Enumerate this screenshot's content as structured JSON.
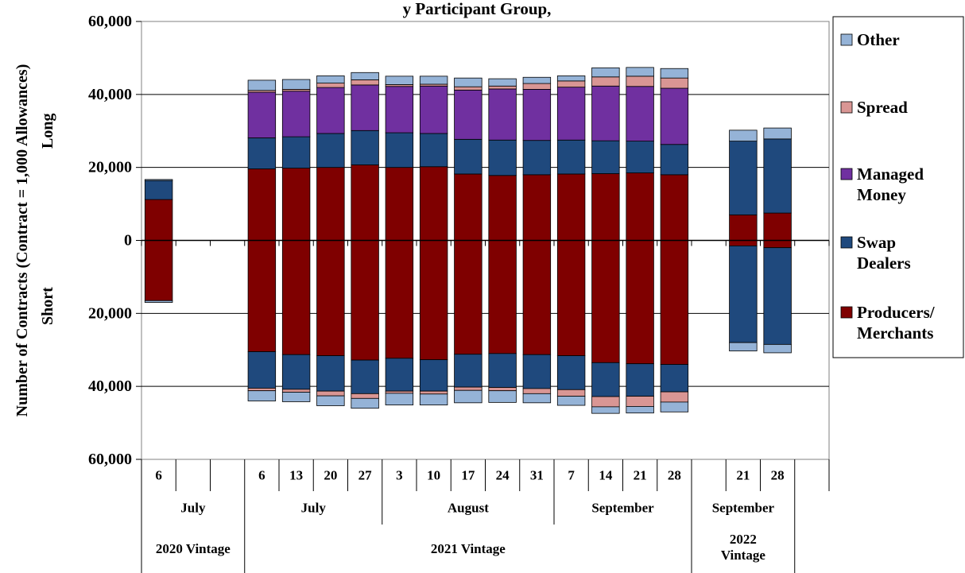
{
  "chart_data": {
    "type": "bar",
    "title": "y Participant Group, ",
    "ylabel": "Number of Contracts (Contract = 1,000 Allowances)",
    "long_label": "Long",
    "short_label": "Short",
    "ylim": [
      -60000,
      60000
    ],
    "yticks": [
      {
        "value": 60000,
        "label": "60,000"
      },
      {
        "value": 40000,
        "label": "40,000"
      },
      {
        "value": 20000,
        "label": "20,000"
      },
      {
        "value": 0,
        "label": "0"
      },
      {
        "value": -20000,
        "label": "20,000"
      },
      {
        "value": -40000,
        "label": "40,000"
      },
      {
        "value": -60000,
        "label": "60,000"
      }
    ],
    "grid": true,
    "legend_position": "right",
    "series_names": [
      "Producers/ Merchants",
      "Swap Dealers",
      "Managed Money",
      "Spread",
      "Other"
    ],
    "series_colors": [
      "#7f0000",
      "#1f497d",
      "#7030a0",
      "#d99694",
      "#95b3d7"
    ],
    "legend": [
      {
        "key": 4,
        "lines": [
          "Other"
        ]
      },
      {
        "key": 3,
        "lines": [
          "Spread"
        ]
      },
      {
        "key": 2,
        "lines": [
          "Managed",
          "Money"
        ]
      },
      {
        "key": 1,
        "lines": [
          "Swap",
          "Dealers"
        ]
      },
      {
        "key": 0,
        "lines": [
          "Producers/",
          "Merchants"
        ]
      }
    ],
    "categories": [
      "6",
      "",
      "",
      "6",
      "13",
      "20",
      "27",
      "3",
      "10",
      "17",
      "24",
      "31",
      "7",
      "14",
      "21",
      "28",
      "",
      "21",
      "28",
      ""
    ],
    "bars": [
      {
        "slot": 0,
        "long": [
          11200,
          5200,
          0,
          0,
          300
        ],
        "short": [
          16500,
          0,
          0,
          0,
          500
        ]
      },
      {
        "slot": 3,
        "long": [
          19600,
          8500,
          12500,
          500,
          2800
        ],
        "short": [
          30500,
          10000,
          0,
          700,
          2800
        ]
      },
      {
        "slot": 4,
        "long": [
          19800,
          8600,
          12500,
          500,
          2700
        ],
        "short": [
          31300,
          9500,
          0,
          800,
          2600
        ]
      },
      {
        "slot": 5,
        "long": [
          20000,
          9300,
          12600,
          1200,
          2000
        ],
        "short": [
          31600,
          9700,
          0,
          1300,
          2700
        ]
      },
      {
        "slot": 6,
        "long": [
          20700,
          9400,
          12500,
          1400,
          2000
        ],
        "short": [
          32800,
          9200,
          0,
          1300,
          2700
        ]
      },
      {
        "slot": 7,
        "long": [
          20000,
          9500,
          12700,
          500,
          2300
        ],
        "short": [
          32300,
          9000,
          0,
          600,
          3200
        ]
      },
      {
        "slot": 8,
        "long": [
          20200,
          9100,
          13000,
          500,
          2200
        ],
        "short": [
          32700,
          8600,
          0,
          800,
          3000
        ]
      },
      {
        "slot": 9,
        "long": [
          18200,
          9500,
          13500,
          900,
          2400
        ],
        "short": [
          31200,
          9000,
          0,
          900,
          3400
        ]
      },
      {
        "slot": 10,
        "long": [
          17800,
          9700,
          14000,
          800,
          2000
        ],
        "short": [
          31000,
          9300,
          0,
          900,
          3200
        ]
      },
      {
        "slot": 11,
        "long": [
          18000,
          9400,
          14000,
          1600,
          1700
        ],
        "short": [
          31300,
          9300,
          0,
          1400,
          2500
        ]
      },
      {
        "slot": 12,
        "long": [
          18200,
          9300,
          14500,
          1700,
          1400
        ],
        "short": [
          31600,
          9300,
          0,
          1800,
          2500
        ]
      },
      {
        "slot": 13,
        "long": [
          18300,
          9000,
          15000,
          2500,
          2500
        ],
        "short": [
          33500,
          9300,
          0,
          2800,
          1800
        ]
      },
      {
        "slot": 14,
        "long": [
          18500,
          8700,
          15000,
          2800,
          2400
        ],
        "short": [
          33800,
          8900,
          0,
          2800,
          1800
        ]
      },
      {
        "slot": 15,
        "long": [
          18000,
          8300,
          15400,
          2800,
          2600
        ],
        "short": [
          34000,
          7500,
          0,
          2800,
          2700
        ]
      },
      {
        "slot": 17,
        "long": [
          7000,
          20200,
          0,
          0,
          3000
        ],
        "short": [
          1500,
          26500,
          0,
          0,
          2300
        ]
      },
      {
        "slot": 18,
        "long": [
          7500,
          20300,
          0,
          0,
          3000
        ],
        "short": [
          2000,
          26500,
          0,
          0,
          2300
        ]
      }
    ],
    "months": [
      {
        "label": "July",
        "from": 0,
        "to": 3
      },
      {
        "label": "July",
        "from": 3,
        "to": 7
      },
      {
        "label": "August",
        "from": 7,
        "to": 12
      },
      {
        "label": "September",
        "from": 12,
        "to": 16
      },
      {
        "label": "September",
        "from": 16,
        "to": 19
      }
    ],
    "vintages": [
      {
        "lines": [
          "2020 Vintage"
        ],
        "from": 0,
        "to": 3
      },
      {
        "lines": [
          "2021 Vintage"
        ],
        "from": 3,
        "to": 16
      },
      {
        "lines": [
          "2022",
          "Vintage"
        ],
        "from": 16,
        "to": 19
      }
    ]
  }
}
